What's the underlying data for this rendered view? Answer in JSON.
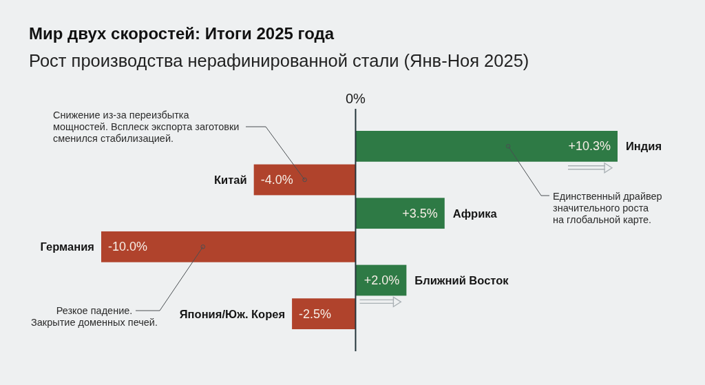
{
  "chart_data": {
    "type": "bar",
    "orientation": "horizontal",
    "title": "Мир двух скоростей: Итоги 2025 года",
    "subtitle": "Рост производства нерафинированной стали (Янв-Ноя 2025)",
    "categories": [
      "Индия",
      "Китай",
      "Африка",
      "Германия",
      "Ближний Восток",
      "Япония/Юж. Корея"
    ],
    "values": [
      10.3,
      -4.0,
      3.5,
      -10.0,
      2.0,
      -2.5
    ],
    "colors": [
      "#2e7a45",
      "#b0432c",
      "#2e7a45",
      "#b0432c",
      "#2e7a45",
      "#b0432c"
    ],
    "value_labels": [
      "+10.3%",
      "-4.0%",
      "+3.5%",
      "-10.0%",
      "+2.0%",
      "-2.5%"
    ],
    "annotations": [
      "0%",
      {
        "text": "Снижение из-за переизбытка\nмощностей. Всплеск экспорта заготовки\nсменился стабилизацией.",
        "x": -2,
        "y": "Китай"
      },
      {
        "text": "Единственный драйвер\nзначительного роста\nна глобальной карте.",
        "x": 6,
        "y": "Индия"
      },
      {
        "text": "Резкое падение.\nЗакрытие доменных печей.",
        "x": -6,
        "y": "Германия"
      }
    ]
  }
}
